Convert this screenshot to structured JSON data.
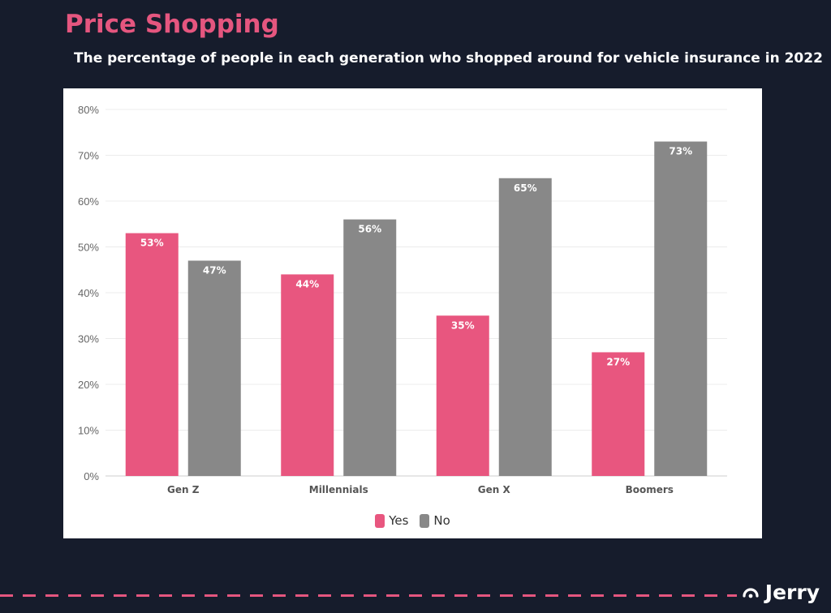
{
  "header": {
    "title": "Price Shopping",
    "subtitle": "The percentage of people in each generation who shopped around for vehicle insurance in 2022"
  },
  "brand": {
    "name": "Jerry",
    "icon": "jerry-logo-icon"
  },
  "colors": {
    "yes": "#e8567f",
    "no": "#888888",
    "accent": "#e5567f",
    "background": "#161c2c"
  },
  "chart_data": {
    "type": "bar",
    "title": "",
    "xlabel": "",
    "ylabel": "",
    "categories": [
      "Gen Z",
      "Millennials",
      "Gen X",
      "Boomers"
    ],
    "series": [
      {
        "name": "Yes",
        "values": [
          53,
          44,
          35,
          27
        ],
        "labels": [
          "53%",
          "44%",
          "35%",
          "27%"
        ]
      },
      {
        "name": "No",
        "values": [
          47,
          56,
          65,
          73
        ],
        "labels": [
          "47%",
          "56%",
          "65%",
          "73%"
        ]
      }
    ],
    "ylim": [
      0,
      80
    ],
    "yticks": [
      "0%",
      "10%",
      "20%",
      "30%",
      "40%",
      "50%",
      "60%",
      "70%",
      "80%"
    ],
    "grid": true,
    "legend_position": "bottom-center"
  }
}
